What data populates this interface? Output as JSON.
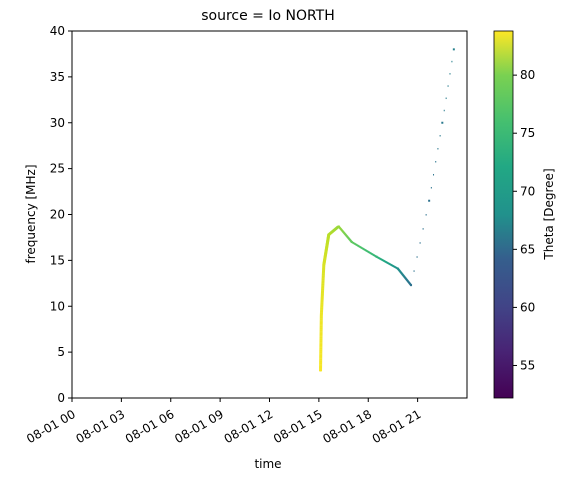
{
  "chart_data": {
    "type": "scatter",
    "title": "source = Io NORTH",
    "xlabel": "time",
    "ylabel": "frequency [MHz]",
    "xlim": [
      "08-01 00:00",
      "08-01 24:00"
    ],
    "ylim": [
      0,
      40
    ],
    "x_ticks": [
      {
        "label": "08-01 00",
        "hour": 0
      },
      {
        "label": "08-01 03",
        "hour": 3
      },
      {
        "label": "08-01 06",
        "hour": 6
      },
      {
        "label": "08-01 09",
        "hour": 9
      },
      {
        "label": "08-01 12",
        "hour": 12
      },
      {
        "label": "08-01 15",
        "hour": 15
      },
      {
        "label": "08-01 18",
        "hour": 18
      },
      {
        "label": "08-01 21",
        "hour": 21
      }
    ],
    "y_ticks": [
      0,
      5,
      10,
      15,
      20,
      25,
      30,
      35,
      40
    ],
    "colorbar": {
      "label": "Theta [Degree]",
      "colormap": "viridis",
      "range": [
        52.2,
        83.8
      ],
      "ticks": [
        55,
        60,
        65,
        70,
        75,
        80
      ]
    },
    "series": [
      {
        "points": [
          {
            "hour": 15.1,
            "freq": 3.0,
            "theta": 83.5
          },
          {
            "hour": 15.15,
            "freq": 9.0,
            "theta": 83
          },
          {
            "hour": 15.3,
            "freq": 14.5,
            "theta": 82
          },
          {
            "hour": 15.6,
            "freq": 17.8,
            "theta": 80.5
          },
          {
            "hour": 16.2,
            "freq": 18.7,
            "theta": 79
          },
          {
            "hour": 17.0,
            "freq": 17.0,
            "theta": 76
          },
          {
            "hour": 18.5,
            "freq": 15.4,
            "theta": 73
          },
          {
            "hour": 19.8,
            "freq": 14.1,
            "theta": 68
          },
          {
            "hour": 20.6,
            "freq": 12.3,
            "theta": 64
          },
          {
            "hour": 21.7,
            "freq": 21.5,
            "theta": 64
          },
          {
            "hour": 22.5,
            "freq": 30.0,
            "theta": 65
          },
          {
            "hour": 23.2,
            "freq": 38.0,
            "theta": 66
          }
        ]
      }
    ],
    "grid": false,
    "legend": "none"
  }
}
